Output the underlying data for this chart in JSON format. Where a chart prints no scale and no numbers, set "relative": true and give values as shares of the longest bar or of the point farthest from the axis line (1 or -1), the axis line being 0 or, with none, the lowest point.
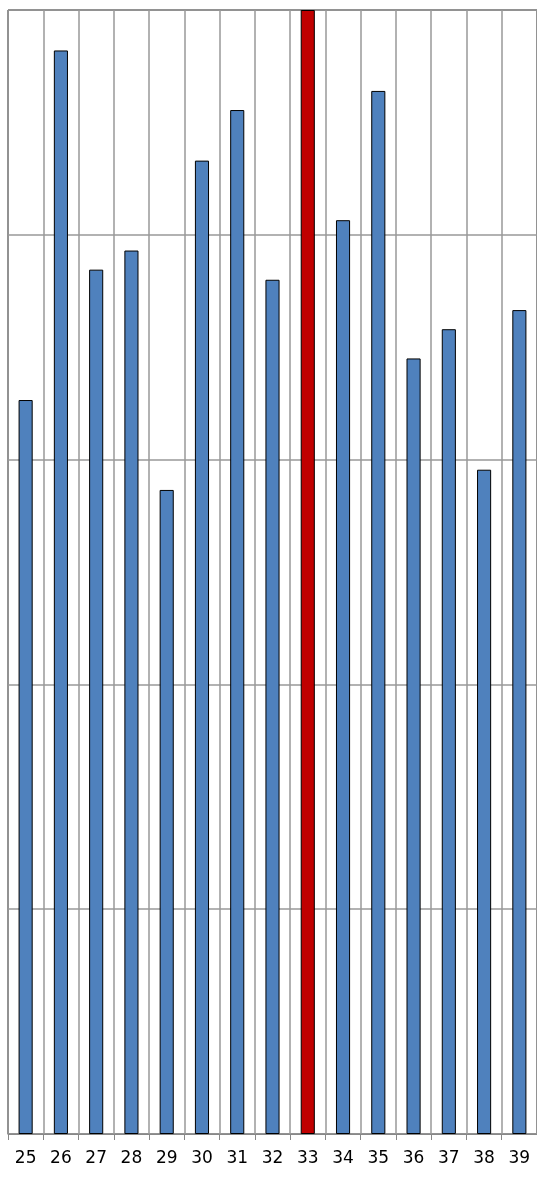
{
  "chart_data": {
    "type": "bar",
    "relative": true,
    "categories": [
      "25",
      "26",
      "27",
      "28",
      "29",
      "30",
      "31",
      "32",
      "33",
      "34",
      "35",
      "36",
      "37",
      "38",
      "39"
    ],
    "values": [
      0.653,
      0.964,
      0.769,
      0.786,
      0.573,
      0.866,
      0.911,
      0.76,
      1,
      0.813,
      0.928,
      0.69,
      0.716,
      0.591,
      0.733
    ],
    "colors": [
      "#4f81bd",
      "#4f81bd",
      "#4f81bd",
      "#4f81bd",
      "#4f81bd",
      "#4f81bd",
      "#4f81bd",
      "#4f81bd",
      "#c00000",
      "#4f81bd",
      "#4f81bd",
      "#4f81bd",
      "#4f81bd",
      "#4f81bd",
      "#4f81bd"
    ],
    "grid": true
  }
}
